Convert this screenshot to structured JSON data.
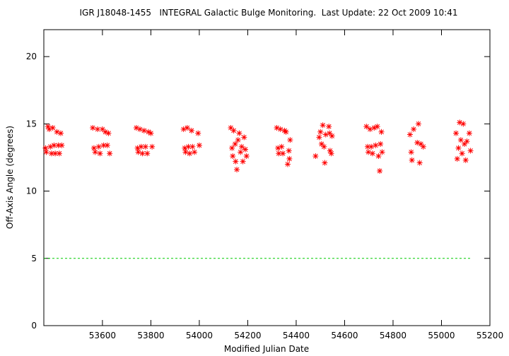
{
  "chart_data": {
    "type": "scatter",
    "title": "IGR J18048-1455   INTEGRAL Galactic Bulge Monitoring.  Last Update: 22 Oct 2009 10:41",
    "x_label": "Modified Julian Date",
    "y_label": "Off-Axis Angle (degrees)",
    "xlim": [
      53358,
      55200
    ],
    "ylim": [
      0,
      22
    ],
    "xticks": [
      53600,
      53800,
      54000,
      54200,
      54400,
      54600,
      54800,
      55000,
      55200
    ],
    "yticks": [
      0,
      5,
      10,
      15,
      20
    ],
    "color": "#ff0000",
    "reference_line": {
      "y": 5,
      "x": [
        53358,
        55127
      ],
      "color": "#00cc00"
    },
    "x": [
      53365,
      53368,
      53375,
      53380,
      53385,
      53390,
      53395,
      53400,
      53405,
      53412,
      53418,
      53422,
      53428,
      53432,
      53560,
      53565,
      53570,
      53580,
      53585,
      53590,
      53600,
      53605,
      53612,
      53620,
      53625,
      53630,
      53740,
      53745,
      53748,
      53755,
      53760,
      53765,
      53772,
      53778,
      53785,
      53790,
      53800,
      53805,
      53935,
      53940,
      53943,
      53950,
      53955,
      53960,
      53968,
      53972,
      53980,
      53995,
      54000,
      54130,
      54135,
      54138,
      54142,
      54148,
      54150,
      54155,
      54160,
      54165,
      54170,
      54175,
      54180,
      54185,
      54190,
      54195,
      54320,
      54325,
      54328,
      54335,
      54340,
      54345,
      54352,
      54358,
      54365,
      54370,
      54375,
      54372,
      54480,
      54495,
      54500,
      54505,
      54510,
      54515,
      54518,
      54522,
      54535,
      54538,
      54540,
      54545,
      54548,
      54690,
      54695,
      54698,
      54705,
      54710,
      54715,
      54722,
      54728,
      54735,
      54740,
      54745,
      54748,
      54752,
      54755,
      54870,
      54875,
      54878,
      54885,
      54900,
      54905,
      54910,
      54915,
      54925,
      55060,
      55065,
      55070,
      55075,
      55080,
      55085,
      55090,
      55095,
      55100,
      55105,
      55115,
      55120
    ],
    "values": [
      13.2,
      12.9,
      14.8,
      14.6,
      13.3,
      12.8,
      14.7,
      13.4,
      12.8,
      14.4,
      13.4,
      12.8,
      14.3,
      13.4,
      14.7,
      13.2,
      12.9,
      14.6,
      13.3,
      12.8,
      14.6,
      13.4,
      14.4,
      13.4,
      14.3,
      12.8,
      14.7,
      13.2,
      12.9,
      14.6,
      13.3,
      12.8,
      14.5,
      13.3,
      12.8,
      14.4,
      14.3,
      13.3,
      14.6,
      13.2,
      12.9,
      14.7,
      13.3,
      12.8,
      14.5,
      13.3,
      12.9,
      14.3,
      13.4,
      14.7,
      13.2,
      12.6,
      14.5,
      13.5,
      12.2,
      11.6,
      13.8,
      14.3,
      12.9,
      13.3,
      12.2,
      14.0,
      13.1,
      12.6,
      14.7,
      13.2,
      12.8,
      14.6,
      13.3,
      12.8,
      14.5,
      14.4,
      12.0,
      13.0,
      13.8,
      12.4,
      12.6,
      14.0,
      14.4,
      13.5,
      14.9,
      13.3,
      12.1,
      14.2,
      14.8,
      14.3,
      13.0,
      12.8,
      14.1,
      14.8,
      13.3,
      12.9,
      14.6,
      13.3,
      12.8,
      14.7,
      13.4,
      14.8,
      12.6,
      11.5,
      13.5,
      14.4,
      12.9,
      14.2,
      12.9,
      12.3,
      14.6,
      13.6,
      15.0,
      12.1,
      13.5,
      13.3,
      14.3,
      12.4,
      13.2,
      15.1,
      13.8,
      12.8,
      15.0,
      13.5,
      12.3,
      13.7,
      14.3,
      13.0
    ]
  }
}
